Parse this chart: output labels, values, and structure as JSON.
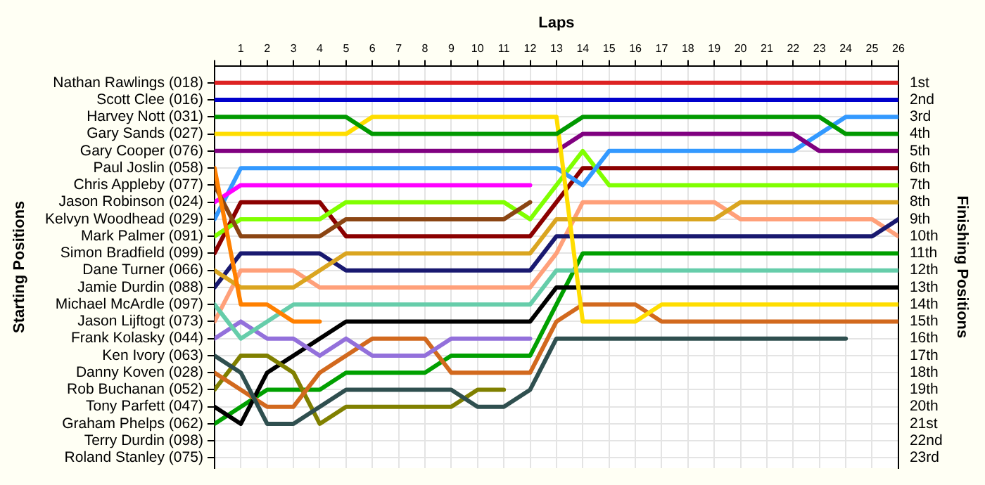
{
  "chart_data": {
    "type": "line",
    "xlabel": "Laps",
    "ylabel": "Finishing Positions",
    "x": [
      0,
      1,
      2,
      3,
      4,
      5,
      6,
      7,
      8,
      9,
      10,
      11,
      12,
      13,
      14,
      15,
      16,
      17,
      18,
      19,
      20,
      21,
      22,
      23,
      24,
      25,
      26
    ],
    "xlim": [
      0,
      26
    ],
    "xticks": [
      {
        "value": 0,
        "label": null
      },
      1,
      2,
      3,
      4,
      5,
      6,
      7,
      8,
      9,
      10,
      11,
      12,
      13,
      14,
      15,
      16,
      17,
      18,
      19,
      20,
      21,
      22,
      23,
      24,
      25,
      26
    ],
    "ylim": [
      23.6,
      0
    ],
    "yticks": [
      {
        "value": 1,
        "label": "1st"
      },
      {
        "value": 2,
        "label": "2nd"
      },
      {
        "value": 3,
        "label": "3rd"
      },
      {
        "value": 4,
        "label": "4th"
      },
      {
        "value": 5,
        "label": "5th"
      },
      {
        "value": 6,
        "label": "6th"
      },
      {
        "value": 7,
        "label": "7th"
      },
      {
        "value": 8,
        "label": "8th"
      },
      {
        "value": 9,
        "label": "9th"
      },
      {
        "value": 10,
        "label": "10th"
      },
      {
        "value": 11,
        "label": "11th"
      },
      {
        "value": 12,
        "label": "12th"
      },
      {
        "value": 13,
        "label": "13th"
      },
      {
        "value": 14,
        "label": "14th"
      },
      {
        "value": 15,
        "label": "15th"
      },
      {
        "value": 16,
        "label": "16th"
      },
      {
        "value": 17,
        "label": "17th"
      },
      {
        "value": 18,
        "label": "18th"
      },
      {
        "value": 19,
        "label": "19th"
      },
      {
        "value": 20,
        "label": "20th"
      },
      {
        "value": 21,
        "label": "21st"
      },
      {
        "value": 22,
        "label": "22nd"
      },
      {
        "value": 23,
        "label": "23rd"
      }
    ],
    "annotations": [
      "Nathan Rawlings (018)",
      "Scott Clee (016)",
      "Harvey Nott (031)",
      "Gary Sands (027)",
      "Gary Cooper (076)",
      "Paul Joslin (058)",
      "Chris Appleby (077)",
      "Jason Robinson (024)",
      "Kelvyn Woodhead (029)",
      "Mark Palmer (091)",
      "Simon Bradfield (099)",
      "Dane Turner (066)",
      "Jamie Durdin (088)",
      "Michael McArdle (097)",
      "Jason Lijftogt (073)",
      "Frank Kolasky (044)",
      "Ken Ivory (063)",
      "Danny Koven (028)",
      "Rob Buchanan (052)",
      "Tony Parfett (047)",
      "Graham Phelps (062)",
      "Terry Durdin (098)",
      "Roland Stanley (075)",
      "Starting Positions"
    ],
    "grid": true,
    "series": [
      {
        "color": "#dd2222",
        "values": [
          1,
          1,
          1,
          1,
          1,
          1,
          1,
          1,
          1,
          1,
          1,
          1,
          1,
          1,
          1,
          1,
          1,
          1,
          1,
          1,
          1,
          1,
          1,
          1,
          1,
          1,
          1
        ]
      },
      {
        "color": "#0000cc",
        "values": [
          2,
          2,
          2,
          2,
          2,
          2,
          2,
          2,
          2,
          2,
          2,
          2,
          2,
          2,
          2,
          2,
          2,
          2,
          2,
          2,
          2,
          2,
          2,
          2,
          2,
          2,
          2
        ]
      },
      {
        "color": "#009900",
        "values": [
          3,
          3,
          3,
          3,
          3,
          3,
          4,
          4,
          4,
          4,
          4,
          4,
          4,
          4,
          3,
          3,
          3,
          3,
          3,
          3,
          3,
          3,
          3,
          3,
          4,
          4,
          4
        ]
      },
      {
        "color": "#ffdd00",
        "values": [
          4,
          4,
          4,
          4,
          4,
          4,
          3,
          3,
          3,
          3,
          3,
          3,
          3,
          3,
          15,
          15,
          15,
          14,
          14,
          14,
          14,
          14,
          14,
          14,
          14,
          14,
          14
        ]
      },
      {
        "color": "#800080",
        "values": [
          5,
          5,
          5,
          5,
          5,
          5,
          5,
          5,
          5,
          5,
          5,
          5,
          5,
          5,
          4,
          4,
          4,
          4,
          4,
          4,
          4,
          4,
          4,
          5,
          5,
          5,
          5
        ]
      },
      {
        "color": "#ff8000",
        "values": [
          6,
          14,
          14,
          15,
          15,
          null,
          null,
          null,
          null,
          null,
          null,
          null,
          null,
          null,
          null,
          null,
          null,
          null,
          null,
          null,
          null,
          null,
          null,
          null,
          null,
          null,
          null
        ]
      },
      {
        "color": "#8b4513",
        "values": [
          7,
          10,
          10,
          10,
          10,
          9,
          9,
          9,
          9,
          9,
          9,
          9,
          8,
          null,
          null,
          null,
          null,
          null,
          null,
          null,
          null,
          null,
          null,
          null,
          null,
          null,
          null
        ]
      },
      {
        "color": "#ff00ff",
        "values": [
          8,
          7,
          7,
          7,
          7,
          7,
          7,
          7,
          7,
          7,
          7,
          7,
          7,
          null,
          null,
          null,
          null,
          null,
          null,
          null,
          null,
          null,
          null,
          null,
          null,
          null,
          null
        ]
      },
      {
        "color": "#3399ff",
        "values": [
          9,
          6,
          6,
          6,
          6,
          6,
          6,
          6,
          6,
          6,
          6,
          6,
          6,
          6,
          7,
          5,
          5,
          5,
          5,
          5,
          5,
          5,
          5,
          4,
          3,
          3,
          3
        ]
      },
      {
        "color": "#80ff00",
        "values": [
          10,
          9,
          9,
          9,
          9,
          8,
          8,
          8,
          8,
          8,
          8,
          8,
          9,
          7,
          5,
          7,
          7,
          7,
          7,
          7,
          7,
          7,
          7,
          7,
          7,
          7,
          7
        ]
      },
      {
        "color": "#8b0000",
        "values": [
          11,
          8,
          8,
          8,
          8,
          10,
          10,
          10,
          10,
          10,
          10,
          10,
          10,
          8,
          6,
          6,
          6,
          6,
          6,
          6,
          6,
          6,
          6,
          6,
          6,
          6,
          6
        ]
      },
      {
        "color": "#daa520",
        "values": [
          12,
          13,
          13,
          13,
          12,
          11,
          11,
          11,
          11,
          11,
          11,
          11,
          11,
          9,
          9,
          9,
          9,
          9,
          9,
          9,
          8,
          8,
          8,
          8,
          8,
          8,
          8
        ]
      },
      {
        "color": "#191970",
        "values": [
          13,
          11,
          11,
          11,
          11,
          12,
          12,
          12,
          12,
          12,
          12,
          12,
          12,
          10,
          10,
          10,
          10,
          10,
          10,
          10,
          10,
          10,
          10,
          10,
          10,
          10,
          9
        ]
      },
      {
        "color": "#66cdaa",
        "values": [
          14,
          16,
          15,
          14,
          14,
          14,
          14,
          14,
          14,
          14,
          14,
          14,
          14,
          12,
          12,
          12,
          12,
          12,
          12,
          12,
          12,
          12,
          12,
          12,
          12,
          12,
          12
        ]
      },
      {
        "color": "#ffa07a",
        "values": [
          15,
          12,
          12,
          12,
          13,
          13,
          13,
          13,
          13,
          13,
          13,
          13,
          13,
          11,
          8,
          8,
          8,
          8,
          8,
          8,
          9,
          9,
          9,
          9,
          9,
          9,
          10
        ]
      },
      {
        "color": "#9370db",
        "values": [
          16,
          15,
          16,
          16,
          17,
          16,
          17,
          17,
          17,
          16,
          16,
          16,
          16,
          null,
          null,
          null,
          null,
          null,
          null,
          null,
          null,
          null,
          null,
          null,
          null,
          null,
          null
        ]
      },
      {
        "color": "#2f4f4f",
        "values": [
          17,
          18,
          21,
          21,
          20,
          19,
          19,
          19,
          19,
          19,
          20,
          20,
          19,
          16,
          16,
          16,
          16,
          16,
          16,
          16,
          16,
          16,
          16,
          16,
          16,
          null,
          null
        ]
      },
      {
        "color": "#d2691e",
        "values": [
          18,
          19,
          20,
          20,
          18,
          17,
          16,
          16,
          16,
          18,
          18,
          18,
          18,
          15,
          14,
          14,
          14,
          15,
          15,
          15,
          15,
          15,
          15,
          15,
          15,
          15,
          15
        ]
      },
      {
        "color": "#808000",
        "values": [
          19,
          17,
          17,
          18,
          21,
          20,
          20,
          20,
          20,
          20,
          19,
          19,
          null,
          null,
          null,
          null,
          null,
          null,
          null,
          null,
          null,
          null,
          null,
          null,
          null,
          null,
          null
        ]
      },
      {
        "color": "#000000",
        "values": [
          20,
          21,
          18,
          17,
          16,
          15,
          15,
          15,
          15,
          15,
          15,
          15,
          15,
          13,
          13,
          13,
          13,
          13,
          13,
          13,
          13,
          13,
          13,
          13,
          13,
          13,
          13
        ]
      },
      {
        "color": "#00a000",
        "values": [
          21,
          20,
          19,
          19,
          19,
          18,
          18,
          18,
          18,
          17,
          17,
          17,
          17,
          14,
          11,
          11,
          11,
          11,
          11,
          11,
          11,
          11,
          11,
          11,
          11,
          11,
          11
        ]
      }
    ]
  }
}
